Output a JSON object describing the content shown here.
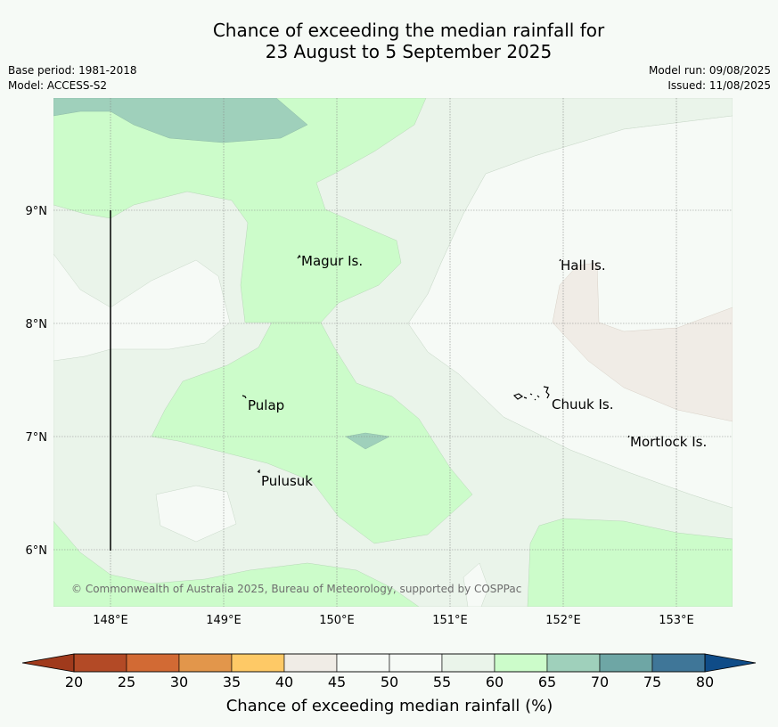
{
  "title": {
    "line1": "Chance of exceeding the median rainfall for",
    "line2": "23 August to 5 September 2025"
  },
  "meta_left": {
    "base_period": "Base period: 1981-2018",
    "model": "Model: ACCESS-S2"
  },
  "meta_right": {
    "model_run": "Model run: 09/08/2025",
    "issued": "Issued: 11/08/2025"
  },
  "map": {
    "lat_labels": [
      "9°N",
      "8°N",
      "7°N",
      "6°N"
    ],
    "lon_labels": [
      "148°E",
      "149°E",
      "150°E",
      "151°E",
      "152°E",
      "153°E"
    ],
    "places": [
      "Magur Is.",
      "Hall Is.",
      "Pulap",
      "Chuuk Is.",
      "Mortlock Is.",
      "Pulusuk"
    ],
    "copyright": "© Commonwealth of Australia 2025, Bureau of Meteorology, supported by COSPPac",
    "colors": {
      "band_40_45": "#f0ece6",
      "band_45_55": "#f6faf6",
      "band_55_60": "#eaf4ea",
      "band_60_65": "#ccfcca",
      "band_65_70": "#9fd0bb"
    }
  },
  "colorbar": {
    "ticks": [
      "20",
      "25",
      "30",
      "35",
      "40",
      "45",
      "50",
      "55",
      "60",
      "65",
      "70",
      "75",
      "80"
    ],
    "colors": [
      "#b34a26",
      "#d26a34",
      "#e2964b",
      "#fec966",
      "#f0ece6",
      "#f6faf6",
      "#f6faf6",
      "#eaf4ea",
      "#ccfcca",
      "#9fd0bb",
      "#6ea6a5",
      "#3f7698"
    ],
    "under_color": "#a03a1c",
    "over_color": "#0f4c88",
    "label": "Chance of exceeding median rainfall (%)"
  }
}
